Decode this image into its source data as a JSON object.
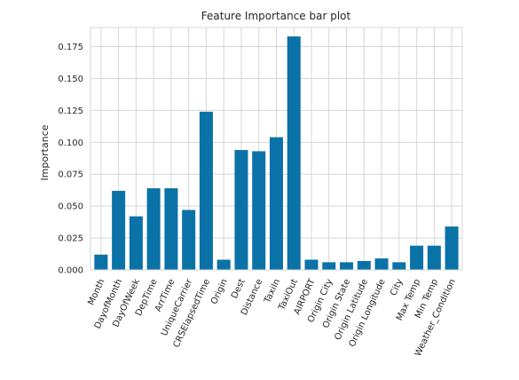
{
  "chart_data": {
    "type": "bar",
    "title": "Feature Importance bar plot",
    "xlabel": "",
    "ylabel": "Importance",
    "ylim": [
      0,
      0.19
    ],
    "yticks": [
      0.0,
      0.025,
      0.05,
      0.075,
      0.1,
      0.125,
      0.15,
      0.175
    ],
    "ytick_labels": [
      "0.000",
      "0.025",
      "0.050",
      "0.075",
      "0.100",
      "0.125",
      "0.150",
      "0.175"
    ],
    "grid": true,
    "bar_color": "#0b72a8",
    "categories": [
      "Month",
      "DayofMonth",
      "DayOfWeek",
      "DepTime",
      "ArrTime",
      "UniqueCarrier",
      "CRSElapsedTime",
      "Origin",
      "Dest",
      "Distance",
      "TaxiIn",
      "TaxiOut",
      "AIRPORT",
      "Origin City",
      "Origin State",
      "Origin Latitude",
      "Origin Longitude",
      "City",
      "Max Temp",
      "Min Temp",
      "Weather_Condition"
    ],
    "values": [
      0.012,
      0.062,
      0.042,
      0.064,
      0.064,
      0.047,
      0.124,
      0.008,
      0.094,
      0.093,
      0.104,
      0.183,
      0.008,
      0.006,
      0.006,
      0.007,
      0.009,
      0.006,
      0.019,
      0.019,
      0.034
    ]
  }
}
